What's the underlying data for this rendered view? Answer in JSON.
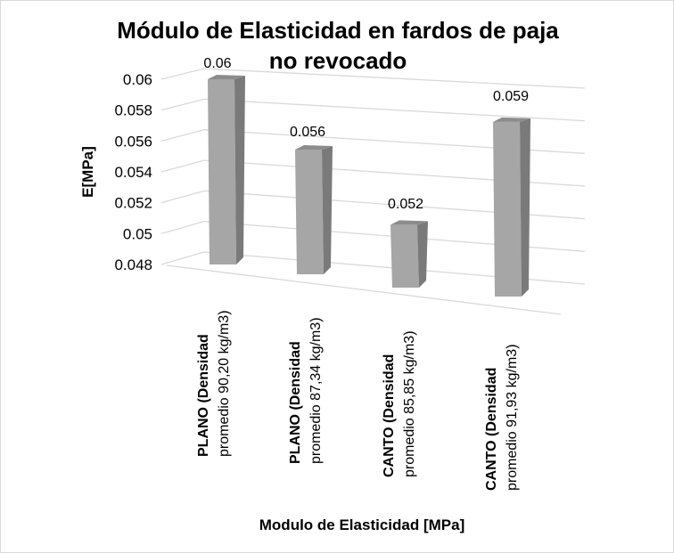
{
  "chart_data": {
    "type": "bar",
    "style": "3d-column",
    "title": "Módulo de Elasticidad en fardos de paja no revocado",
    "title_lines": [
      "Módulo de Elasticidad en fardos de paja",
      "no revocado"
    ],
    "xlabel": "Modulo de Elasticidad [MPa]",
    "ylabel": "E[MPa]",
    "ylim": [
      0.048,
      0.06
    ],
    "yticks": [
      "0.048",
      "0.05",
      "0.052",
      "0.054",
      "0.056",
      "0.058",
      "0.06"
    ],
    "grid": true,
    "legend": null,
    "categories": [
      [
        "PLANO (Densidad",
        "promedio 90,20 kg/m3)"
      ],
      [
        "PLANO  (Densidad",
        "promedio 87,34 kg/m3)"
      ],
      [
        "CANTO  (Densidad",
        "promedio 85,85 kg/m3)"
      ],
      [
        "CANTO  (Densidad",
        "promedio 91,93 kg/m3)"
      ]
    ],
    "values": [
      0.06,
      0.056,
      0.052,
      0.059
    ],
    "data_labels": [
      "0.06",
      "0.056",
      "0.052",
      "0.059"
    ],
    "colors": {
      "bar_front": "#a6a6a6",
      "bar_side": "#7a7a7a",
      "bar_top": "#8c8c8c",
      "grid": "#d9d9d9"
    }
  }
}
